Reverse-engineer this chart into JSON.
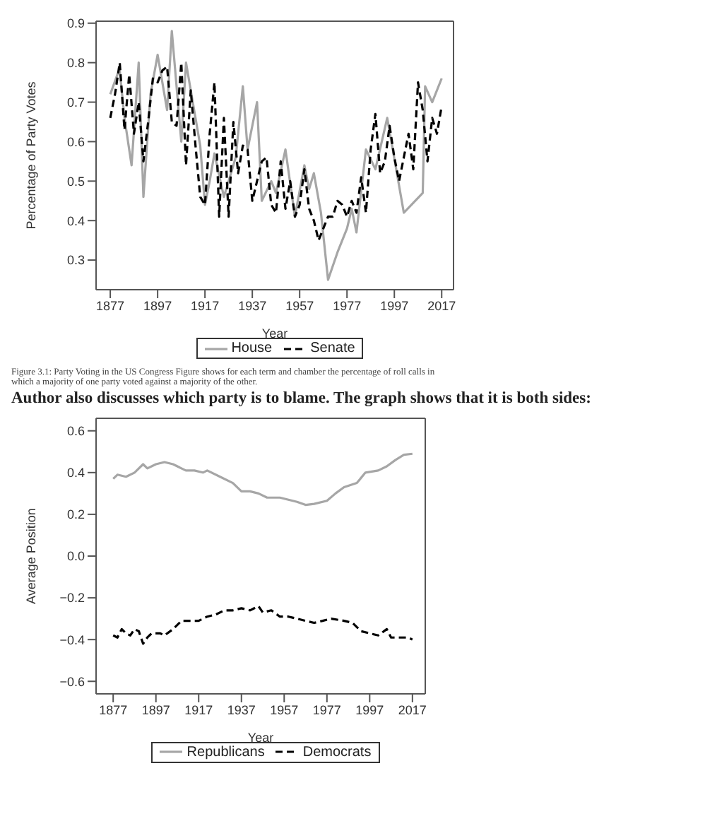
{
  "chart_data": [
    {
      "type": "line",
      "xlabel": "Year",
      "ylabel": "Percentage of Party Votes",
      "xlim": [
        1871,
        2022
      ],
      "ylim": [
        0.225,
        0.905
      ],
      "xticks": [
        1877,
        1897,
        1917,
        1937,
        1957,
        1977,
        1997,
        2017
      ],
      "yticks": [
        0.3,
        0.4,
        0.5,
        0.6,
        0.7,
        0.8,
        0.9
      ],
      "grid": false,
      "legend": "bottom",
      "marker": "none",
      "annotations": [
        "Figure 3.1: Party Voting in the US Congress Figure shows for each term and chamber the percentage of roll calls in which a majority of one party voted against a majority of the other."
      ],
      "series": [
        {
          "name": "House",
          "color": "#a6a6a6",
          "line_style": "solid",
          "x": [
            1877,
            1880,
            1881,
            1883,
            1886,
            1889,
            1891,
            1894,
            1897,
            1901,
            1903,
            1907,
            1909,
            1913,
            1915,
            1917,
            1919,
            1921,
            1925,
            1930,
            1933,
            1935,
            1939,
            1941,
            1945,
            1947,
            1951,
            1955,
            1959,
            1961,
            1963,
            1966,
            1969,
            1973,
            1977,
            1979,
            1981,
            1985,
            1989,
            1994,
            2001,
            2009,
            2010,
            2013,
            2017
          ],
          "values": [
            0.72,
            0.77,
            0.78,
            0.66,
            0.54,
            0.8,
            0.46,
            0.72,
            0.82,
            0.68,
            0.88,
            0.6,
            0.8,
            0.66,
            0.59,
            0.44,
            0.5,
            0.57,
            0.46,
            0.56,
            0.74,
            0.58,
            0.7,
            0.45,
            0.5,
            0.47,
            0.58,
            0.41,
            0.54,
            0.48,
            0.52,
            0.42,
            0.25,
            0.32,
            0.38,
            0.43,
            0.37,
            0.58,
            0.53,
            0.66,
            0.42,
            0.47,
            0.74,
            0.7,
            0.76
          ]
        },
        {
          "name": "Senate",
          "color": "#000000",
          "line_style": "dashed",
          "x": [
            1877,
            1879,
            1881,
            1883,
            1885,
            1887,
            1889,
            1891,
            1893,
            1895,
            1897,
            1899,
            1901,
            1903,
            1905,
            1907,
            1909,
            1911,
            1913,
            1915,
            1917,
            1919,
            1921,
            1923,
            1925,
            1927,
            1929,
            1931,
            1933,
            1935,
            1937,
            1939,
            1941,
            1943,
            1945,
            1947,
            1949,
            1951,
            1953,
            1955,
            1957,
            1959,
            1961,
            1963,
            1965,
            1967,
            1969,
            1971,
            1973,
            1975,
            1977,
            1979,
            1981,
            1983,
            1985,
            1987,
            1989,
            1991,
            1993,
            1995,
            1997,
            1999,
            2001,
            2003,
            2005,
            2007,
            2009,
            2011,
            2013,
            2015,
            2017
          ],
          "values": [
            0.66,
            0.72,
            0.8,
            0.63,
            0.77,
            0.62,
            0.7,
            0.55,
            0.65,
            0.76,
            0.75,
            0.78,
            0.79,
            0.65,
            0.64,
            0.8,
            0.54,
            0.73,
            0.59,
            0.46,
            0.44,
            0.62,
            0.75,
            0.41,
            0.66,
            0.41,
            0.65,
            0.52,
            0.59,
            0.58,
            0.45,
            0.5,
            0.55,
            0.56,
            0.44,
            0.42,
            0.55,
            0.43,
            0.5,
            0.41,
            0.44,
            0.53,
            0.43,
            0.4,
            0.35,
            0.38,
            0.41,
            0.41,
            0.45,
            0.44,
            0.41,
            0.45,
            0.42,
            0.51,
            0.42,
            0.58,
            0.67,
            0.52,
            0.55,
            0.64,
            0.56,
            0.5,
            0.56,
            0.62,
            0.53,
            0.75,
            0.68,
            0.55,
            0.66,
            0.62,
            0.69
          ]
        }
      ]
    },
    {
      "type": "line",
      "title": "Author also discusses which party is to blame. The graph shows that it is both sides:",
      "xlabel": "Year",
      "ylabel": "Average Position",
      "xlim": [
        1869,
        2023
      ],
      "ylim": [
        -0.66,
        0.66
      ],
      "xticks": [
        1877,
        1897,
        1917,
        1937,
        1957,
        1977,
        1997,
        2017
      ],
      "yticks": [
        {
          "value": -0.6,
          "label": "−0.6"
        },
        {
          "value": -0.4,
          "label": "−0.4"
        },
        {
          "value": -0.2,
          "label": "−0.2"
        },
        {
          "value": 0,
          "label": "0.0"
        },
        {
          "value": 0.2,
          "label": "0.2"
        },
        {
          "value": 0.4,
          "label": "0.4"
        },
        {
          "value": 0.6,
          "label": "0.6"
        }
      ],
      "grid": false,
      "legend": "bottom",
      "marker": "none",
      "series": [
        {
          "name": "Republicans",
          "color": "#a6a6a6",
          "line_style": "solid",
          "x": [
            1877,
            1879,
            1883,
            1887,
            1891,
            1893,
            1897,
            1901,
            1905,
            1911,
            1915,
            1919,
            1921,
            1927,
            1933,
            1937,
            1941,
            1945,
            1949,
            1955,
            1959,
            1963,
            1967,
            1971,
            1977,
            1981,
            1985,
            1991,
            1995,
            2001,
            2005,
            2009,
            2013,
            2017
          ],
          "values": [
            0.37,
            0.39,
            0.38,
            0.4,
            0.44,
            0.42,
            0.44,
            0.45,
            0.44,
            0.41,
            0.41,
            0.4,
            0.41,
            0.38,
            0.35,
            0.31,
            0.31,
            0.3,
            0.28,
            0.28,
            0.27,
            0.26,
            0.245,
            0.25,
            0.265,
            0.3,
            0.33,
            0.35,
            0.4,
            0.41,
            0.43,
            0.46,
            0.485,
            0.49
          ]
        },
        {
          "name": "Democrats",
          "color": "#000000",
          "line_style": "dashed",
          "x": [
            1877,
            1879,
            1881,
            1883,
            1885,
            1887,
            1889,
            1891,
            1893,
            1895,
            1899,
            1901,
            1905,
            1909,
            1913,
            1917,
            1921,
            1925,
            1929,
            1933,
            1937,
            1941,
            1945,
            1947,
            1951,
            1955,
            1959,
            1963,
            1967,
            1971,
            1975,
            1979,
            1985,
            1989,
            1993,
            1997,
            2001,
            2005,
            2007,
            2011,
            2015,
            2017
          ],
          "values": [
            -0.38,
            -0.39,
            -0.35,
            -0.37,
            -0.38,
            -0.35,
            -0.36,
            -0.42,
            -0.39,
            -0.37,
            -0.37,
            -0.38,
            -0.35,
            -0.31,
            -0.31,
            -0.31,
            -0.29,
            -0.28,
            -0.26,
            -0.26,
            -0.25,
            -0.26,
            -0.24,
            -0.27,
            -0.26,
            -0.29,
            -0.29,
            -0.3,
            -0.31,
            -0.32,
            -0.31,
            -0.3,
            -0.31,
            -0.32,
            -0.36,
            -0.37,
            -0.38,
            -0.35,
            -0.39,
            -0.39,
            -0.39,
            -0.4
          ]
        }
      ]
    }
  ]
}
